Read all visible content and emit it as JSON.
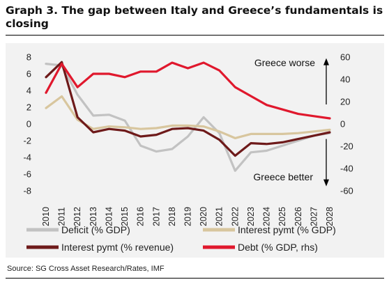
{
  "title": "Graph 3. The gap between Italy and Greece’s fundamentals is closing",
  "source": "Source: SG Cross Asset Research/Rates, IMF",
  "chart_data": {
    "type": "line",
    "x": [
      "2010",
      "2011",
      "2012",
      "2013",
      "2014",
      "2015",
      "2016",
      "2017",
      "2018",
      "2019",
      "2020",
      "2021",
      "2022",
      "2023",
      "2024",
      "2025",
      "2026",
      "2027",
      "2028"
    ],
    "ylim_left": [
      -8,
      8
    ],
    "yticks_left": [
      -8,
      -6,
      -4,
      -2,
      0,
      2,
      4,
      6,
      8
    ],
    "ylim_right": [
      -60,
      60
    ],
    "yticks_right": [
      -60,
      -40,
      -20,
      0,
      20,
      40,
      60
    ],
    "grid": false,
    "legend_position": "bottom",
    "annotations": {
      "top": "Greece worse",
      "bottom": "Greece better"
    },
    "series": [
      {
        "name": "Deficit (% GDP)",
        "axis": "left",
        "color": "#c2c2c2",
        "values": [
          7.2,
          7.0,
          3.5,
          1.0,
          1.1,
          0.4,
          -2.6,
          -3.3,
          -3.0,
          -1.5,
          0.8,
          -1.1,
          -5.6,
          -3.4,
          -3.2,
          -2.6,
          -2.0,
          -1.4,
          -1.1
        ]
      },
      {
        "name": "Interest pymt (% GDP)",
        "axis": "left",
        "color": "#d8c69e",
        "values": [
          1.9,
          3.3,
          0.5,
          -0.6,
          -0.3,
          -0.4,
          -0.6,
          -0.5,
          -0.2,
          -0.2,
          -0.3,
          -0.9,
          -1.7,
          -1.2,
          -1.2,
          -1.2,
          -1.1,
          -0.9,
          -0.7
        ]
      },
      {
        "name": "Interest pymt (% revenue)",
        "axis": "left",
        "color": "#6e1a1a",
        "values": [
          5.6,
          7.4,
          0.8,
          -1.0,
          -0.6,
          -0.8,
          -1.5,
          -1.3,
          -0.6,
          -0.5,
          -0.8,
          -1.9,
          -3.8,
          -2.3,
          -2.4,
          -2.2,
          -1.8,
          -1.4,
          -1.0
        ]
      },
      {
        "name": "Debt (% GDP, rhs)",
        "axis": "right",
        "color": "#e0182d",
        "values": [
          28,
          54,
          33,
          45,
          45,
          42,
          47,
          47,
          55,
          50,
          55,
          48,
          33,
          25,
          17,
          13,
          9,
          7,
          5
        ]
      }
    ]
  }
}
